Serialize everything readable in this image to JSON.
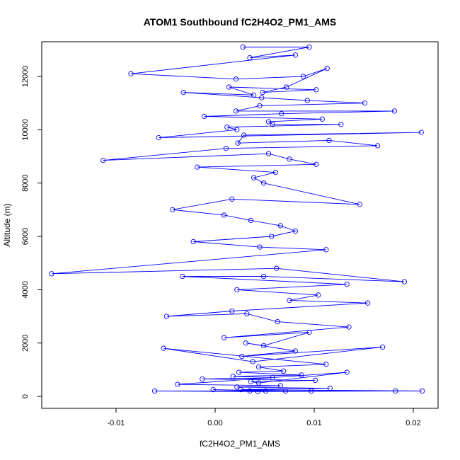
{
  "chart_data": {
    "type": "line",
    "title": "ATOM1 Southbound fC2H4O2_PM1_AMS",
    "xlabel": "fC2H4O2_PM1_AMS",
    "ylabel": "Altitude (m)",
    "xlim": [
      -0.0175,
      0.0225
    ],
    "ylim": [
      -450,
      13300
    ],
    "x_ticks": [
      -0.01,
      0.0,
      0.01,
      0.02
    ],
    "x_tick_labels": [
      "-0.01",
      "0.00",
      "0.01",
      "0.02"
    ],
    "y_ticks": [
      0,
      2000,
      4000,
      6000,
      8000,
      10000,
      12000
    ],
    "y_tick_labels": [
      "0",
      "2000",
      "4000",
      "6000",
      "8000",
      "10000",
      "12000"
    ],
    "grid": false,
    "legend": "none",
    "marker": "open-circle",
    "line_color": "#0000ff",
    "series": [
      {
        "x": [
          0.0028,
          0.0095,
          0.0035,
          0.0081,
          -0.0085,
          0.0021,
          0.0089,
          0.0113,
          0.0072,
          0.0048,
          0.0102,
          0.0014,
          0.0039,
          -0.0032,
          0.0047,
          0.0093,
          0.0151,
          0.0045,
          0.0021,
          0.0181,
          0.0067,
          -0.0011,
          0.0108,
          0.0054,
          0.0058,
          0.0127,
          0.0012,
          0.0022,
          -0.0057,
          0.0208,
          0.0029,
          0.0023,
          0.0115,
          0.0164,
          0.0011,
          -0.0113,
          0.0054,
          0.0075,
          0.0102,
          -0.0018,
          0.0061,
          0.0039,
          0.0049,
          0.0146,
          0.0017,
          -0.0043,
          0.0009,
          0.0036,
          0.0066,
          0.0081,
          0.0057,
          -0.0022,
          0.0045,
          0.0112,
          -0.0165,
          0.0062,
          0.0191,
          0.0049,
          -0.0033,
          0.0133,
          0.0022,
          0.0104,
          0.0075,
          0.0154,
          0.0017,
          -0.0049,
          0.0032,
          0.0063,
          0.0135,
          0.0009,
          0.0095,
          0.0049,
          0.0031,
          0.0081,
          0.0027,
          0.0169,
          0.0038,
          -0.0052,
          0.0112,
          0.0044,
          0.0069,
          0.0024,
          0.0087,
          0.0018,
          0.0058,
          -0.0013,
          0.0101,
          0.0036,
          0.0044,
          0.0133,
          -0.0038,
          0.0066,
          0.0022,
          0.0116,
          0.0026,
          0.0209,
          0.0051,
          -0.0002,
          0.0071,
          0.0182,
          0.0043,
          -0.0061,
          0.0035,
          0.0097
        ],
        "y": [
          13100,
          13100,
          12700,
          12800,
          12100,
          11900,
          12000,
          12300,
          11600,
          11400,
          11500,
          11600,
          11300,
          11400,
          11200,
          11100,
          11000,
          10900,
          10700,
          10700,
          10600,
          10500,
          10400,
          10300,
          10200,
          10200,
          10100,
          10000,
          9700,
          9900,
          9800,
          9500,
          9600,
          9400,
          9300,
          8850,
          9100,
          8900,
          8700,
          8600,
          8400,
          8200,
          8000,
          7200,
          7400,
          7000,
          6800,
          6600,
          6400,
          6200,
          6000,
          5800,
          5600,
          5500,
          4600,
          4800,
          4300,
          4500,
          4500,
          4200,
          4000,
          3800,
          3600,
          3500,
          3200,
          3000,
          3100,
          2800,
          2600,
          2200,
          2400,
          1900,
          2000,
          1700,
          1500,
          1850,
          1300,
          1800,
          1200,
          1100,
          950,
          900,
          800,
          750,
          700,
          650,
          600,
          550,
          500,
          900,
          450,
          400,
          350,
          300,
          250,
          200,
          200,
          250,
          200,
          200,
          180,
          200,
          200,
          200
        ]
      }
    ]
  }
}
